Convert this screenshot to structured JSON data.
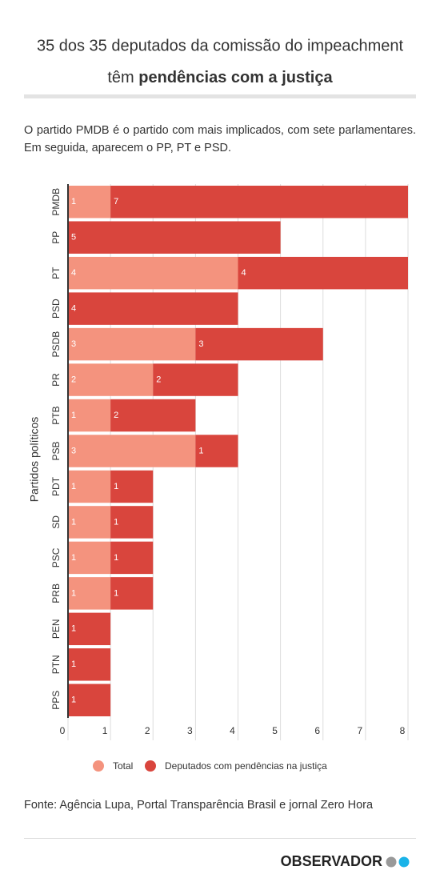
{
  "chart_data": {
    "type": "stacked-barh",
    "title": "35 dos 35 deputados da comissão do impeachment",
    "subtitle_lead": "têm",
    "subtitle_emphasis": "pendências com a justiça",
    "description": "O partido PMDB é o partido com mais implicados, com sete parlamentares. Em seguida, aparecem o PP, PT e PSD.",
    "y_label": "Partidos políticos",
    "categories": [
      "PMDB",
      "PP",
      "PT",
      "PSD",
      "PSDB",
      "PR",
      "PTB",
      "PSB",
      "PDT",
      "SD",
      "PSC",
      "PRB",
      "PEN",
      "PTN",
      "PPS"
    ],
    "series": [
      {
        "name": "Total",
        "color": "#f4937e",
        "values": [
          1,
          null,
          4,
          null,
          3,
          2,
          1,
          3,
          1,
          1,
          1,
          1,
          null,
          null,
          null
        ]
      },
      {
        "name": "Deputados com pendências na justiça",
        "color": "#d9453d",
        "values": [
          7,
          5,
          4,
          4,
          3,
          2,
          2,
          1,
          1,
          1,
          1,
          1,
          1,
          1,
          1
        ]
      }
    ],
    "xlim": [
      0,
      8
    ],
    "xticks": [
      0,
      1,
      2,
      3,
      4,
      5,
      6,
      7,
      8
    ],
    "grid": true,
    "source": "Fonte: Agência Lupa, Portal Transparência Brasil e jornal Zero Hora",
    "brand": "OBSERVADOR"
  }
}
